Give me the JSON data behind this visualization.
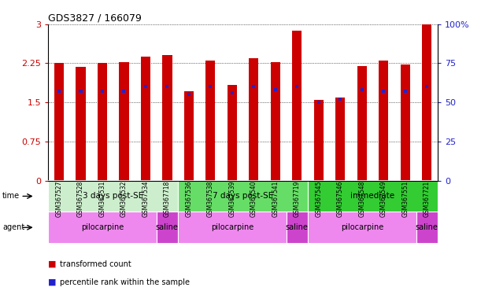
{
  "title": "GDS3827 / 166079",
  "samples": [
    "GSM367527",
    "GSM367528",
    "GSM367531",
    "GSM367532",
    "GSM367534",
    "GSM367718",
    "GSM367536",
    "GSM367538",
    "GSM367539",
    "GSM367540",
    "GSM367541",
    "GSM367719",
    "GSM367545",
    "GSM367546",
    "GSM367548",
    "GSM367549",
    "GSM367551",
    "GSM367721"
  ],
  "transformed_count": [
    2.25,
    2.18,
    2.25,
    2.27,
    2.37,
    2.4,
    1.72,
    2.3,
    1.84,
    2.35,
    2.27,
    2.88,
    1.55,
    1.6,
    2.2,
    2.3,
    2.22,
    3.0
  ],
  "percentile_rank": [
    57,
    57,
    57,
    57,
    60,
    60,
    55,
    60,
    56,
    60,
    58,
    60,
    50,
    52,
    58,
    57,
    57,
    60
  ],
  "bar_color": "#cc0000",
  "blue_color": "#2222cc",
  "y_left_ticks": [
    0,
    0.75,
    1.5,
    2.25,
    3
  ],
  "y_left_labels": [
    "0",
    "0.75",
    "1.5",
    "2.25",
    "3"
  ],
  "y_right_ticks": [
    0,
    25,
    50,
    75,
    100
  ],
  "y_right_labels": [
    "0",
    "25",
    "50",
    "75",
    "100%"
  ],
  "ylim_left": [
    0,
    3
  ],
  "ylim_right": [
    0,
    100
  ],
  "time_groups": [
    {
      "label": "3 days post-SE",
      "start": 0,
      "end": 6,
      "color": "#cceecc"
    },
    {
      "label": "7 days post-SE",
      "start": 6,
      "end": 12,
      "color": "#66dd66"
    },
    {
      "label": "immediate",
      "start": 12,
      "end": 18,
      "color": "#33cc33"
    }
  ],
  "agent_groups": [
    {
      "label": "pilocarpine",
      "start": 0,
      "end": 5,
      "color": "#ee88ee"
    },
    {
      "label": "saline",
      "start": 5,
      "end": 6,
      "color": "#cc44cc"
    },
    {
      "label": "pilocarpine",
      "start": 6,
      "end": 11,
      "color": "#ee88ee"
    },
    {
      "label": "saline",
      "start": 11,
      "end": 12,
      "color": "#cc44cc"
    },
    {
      "label": "pilocarpine",
      "start": 12,
      "end": 17,
      "color": "#ee88ee"
    },
    {
      "label": "saline",
      "start": 17,
      "end": 18,
      "color": "#cc44cc"
    }
  ],
  "legend_items": [
    {
      "label": "transformed count",
      "color": "#cc0000"
    },
    {
      "label": "percentile rank within the sample",
      "color": "#2222cc"
    }
  ],
  "bg_color": "#ffffff",
  "tick_label_color_left": "#cc0000",
  "tick_label_color_right": "#2222cc",
  "bar_width": 0.45,
  "label_bg_color": "#dddddd"
}
